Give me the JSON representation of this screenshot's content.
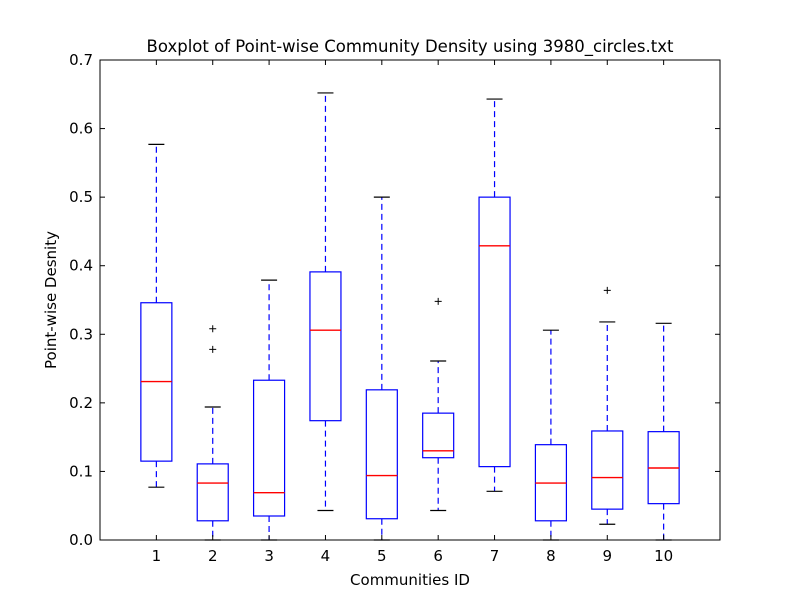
{
  "chart_data": {
    "type": "boxplot",
    "title": "Boxplot of Point-wise Community Density using 3980_circles.txt",
    "xlabel": "Communities ID",
    "ylabel": "Point-wise Desnity",
    "ylim": [
      0.0,
      0.7
    ],
    "yticks": [
      "0.0",
      "0.1",
      "0.2",
      "0.3",
      "0.4",
      "0.5",
      "0.6",
      "0.7"
    ],
    "grid": false,
    "categories": [
      "1",
      "2",
      "3",
      "4",
      "5",
      "6",
      "7",
      "8",
      "9",
      "10"
    ],
    "boxes": [
      {
        "id": "1",
        "whisker_low": 0.077,
        "q1": 0.115,
        "median": 0.231,
        "q3": 0.346,
        "whisker_high": 0.577,
        "outliers": []
      },
      {
        "id": "2",
        "whisker_low": 0.0,
        "q1": 0.028,
        "median": 0.083,
        "q3": 0.111,
        "whisker_high": 0.194,
        "outliers": [
          0.278,
          0.308
        ]
      },
      {
        "id": "3",
        "whisker_low": 0.0,
        "q1": 0.035,
        "median": 0.069,
        "q3": 0.233,
        "whisker_high": 0.379,
        "outliers": []
      },
      {
        "id": "4",
        "whisker_low": 0.043,
        "q1": 0.174,
        "median": 0.306,
        "q3": 0.391,
        "whisker_high": 0.652,
        "outliers": []
      },
      {
        "id": "5",
        "whisker_low": 0.0,
        "q1": 0.031,
        "median": 0.094,
        "q3": 0.219,
        "whisker_high": 0.5,
        "outliers": []
      },
      {
        "id": "6",
        "whisker_low": 0.043,
        "q1": 0.12,
        "median": 0.13,
        "q3": 0.185,
        "whisker_high": 0.261,
        "outliers": [
          0.348
        ]
      },
      {
        "id": "7",
        "whisker_low": 0.071,
        "q1": 0.107,
        "median": 0.429,
        "q3": 0.5,
        "whisker_high": 0.643,
        "outliers": []
      },
      {
        "id": "8",
        "whisker_low": 0.0,
        "q1": 0.028,
        "median": 0.083,
        "q3": 0.139,
        "whisker_high": 0.306,
        "outliers": []
      },
      {
        "id": "9",
        "whisker_low": 0.023,
        "q1": 0.045,
        "median": 0.091,
        "q3": 0.159,
        "whisker_high": 0.318,
        "outliers": [
          0.364
        ]
      },
      {
        "id": "10",
        "whisker_low": 0.0,
        "q1": 0.053,
        "median": 0.105,
        "q3": 0.158,
        "whisker_high": 0.316,
        "outliers": []
      }
    ],
    "colors": {
      "box": "#0000ff",
      "whisker": "#0000ff",
      "cap": "#000000",
      "median": "#ff0000",
      "outlier": "#000000"
    }
  }
}
